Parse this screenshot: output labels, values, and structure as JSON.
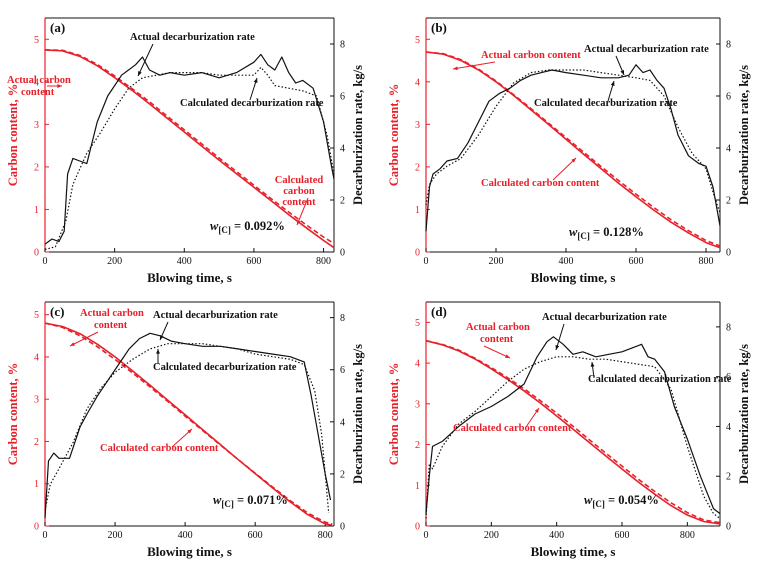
{
  "colors": {
    "carbon": "#e8202a",
    "rate": "#111111"
  },
  "chart_data": [
    {
      "type": "line",
      "panel": "(a)",
      "xlabel": "Blowing time, s",
      "ylabel_left": "Carbon content, %",
      "ylabel_right": "Decarburization rate, kg/s",
      "xlim": [
        0,
        830
      ],
      "ylim_left": [
        0,
        5.5
      ],
      "ylim_right": [
        0,
        9
      ],
      "xticks": [
        0,
        200,
        400,
        600,
        800
      ],
      "yticks_left": [
        0,
        1,
        2,
        3,
        4,
        5
      ],
      "yticks_right": [
        0,
        2,
        4,
        6,
        8
      ],
      "w_prefix": "w",
      "w_sub": "[C]",
      "w_suffix": " = 0.092%",
      "annotations": {
        "actual_rate": "Actual decarburization rate",
        "calc_rate": "Calculated decarburization rate",
        "actual_c": [
          "Actual carbon",
          "content"
        ],
        "calc_c": [
          "Calculated",
          "carbon",
          "content"
        ]
      },
      "series": [
        {
          "name": "Actual carbon content",
          "axis": "left",
          "style": "solid",
          "x": [
            0,
            50,
            100,
            150,
            200,
            250,
            300,
            350,
            400,
            450,
            500,
            550,
            600,
            650,
            700,
            750,
            800,
            830
          ],
          "y": [
            4.75,
            4.73,
            4.6,
            4.38,
            4.1,
            3.8,
            3.48,
            3.15,
            2.82,
            2.49,
            2.16,
            1.84,
            1.52,
            1.2,
            0.88,
            0.57,
            0.27,
            0.1
          ]
        },
        {
          "name": "Calculated carbon content",
          "axis": "left",
          "style": "dashed",
          "x": [
            0,
            50,
            100,
            150,
            200,
            250,
            300,
            350,
            400,
            450,
            500,
            550,
            600,
            650,
            700,
            750,
            800,
            830
          ],
          "y": [
            4.75,
            4.74,
            4.62,
            4.41,
            4.14,
            3.84,
            3.53,
            3.2,
            2.87,
            2.54,
            2.21,
            1.89,
            1.57,
            1.25,
            0.94,
            0.64,
            0.35,
            0.2
          ]
        },
        {
          "name": "Actual decarburization rate",
          "axis": "right",
          "style": "solid",
          "x": [
            0,
            20,
            40,
            55,
            65,
            80,
            100,
            120,
            150,
            180,
            220,
            260,
            280,
            300,
            330,
            360,
            400,
            450,
            500,
            550,
            600,
            620,
            640,
            660,
            680,
            700,
            720,
            740,
            770,
            800,
            820,
            830
          ],
          "y": [
            0.3,
            0.5,
            0.4,
            0.8,
            3.0,
            3.6,
            3.5,
            3.4,
            5.0,
            6.0,
            6.8,
            7.2,
            7.5,
            7.0,
            6.8,
            6.9,
            6.8,
            6.9,
            6.7,
            6.9,
            7.3,
            7.6,
            7.2,
            7.0,
            7.5,
            6.9,
            6.5,
            6.6,
            6.3,
            5.0,
            3.5,
            2.8
          ]
        },
        {
          "name": "Calculated decarburization rate",
          "axis": "right",
          "style": "dotted",
          "x": [
            0,
            30,
            60,
            80,
            120,
            160,
            200,
            240,
            280,
            320,
            360,
            400,
            450,
            500,
            550,
            600,
            620,
            640,
            660,
            700,
            740,
            780,
            810,
            830
          ],
          "y": [
            0.1,
            0.2,
            1.2,
            2.6,
            3.8,
            4.6,
            5.5,
            6.3,
            6.7,
            6.8,
            6.9,
            6.9,
            6.9,
            6.8,
            6.8,
            6.8,
            7.1,
            6.8,
            6.4,
            6.3,
            6.2,
            6.0,
            4.5,
            3.0
          ]
        }
      ]
    },
    {
      "type": "line",
      "panel": "(b)",
      "xlabel": "Blowing time, s",
      "ylabel_left": "Carbon content, %",
      "ylabel_right": "Decarburization rate, kg/s",
      "xlim": [
        0,
        840
      ],
      "ylim_left": [
        0,
        5.5
      ],
      "ylim_right": [
        0,
        9
      ],
      "xticks": [
        0,
        200,
        400,
        600,
        800
      ],
      "yticks_left": [
        0,
        1,
        2,
        3,
        4,
        5
      ],
      "yticks_right": [
        0,
        2,
        4,
        6,
        8
      ],
      "w_prefix": "w",
      "w_sub": "[C]",
      "w_suffix": " = 0.128%",
      "annotations": {
        "actual_rate": "Actual decarburization rate",
        "calc_rate": "Calculated decarburization rate",
        "actual_c": [
          "Actual carbon content"
        ],
        "calc_c": [
          "Calculated carbon content"
        ]
      },
      "series": [
        {
          "name": "Actual carbon content",
          "axis": "left",
          "style": "solid",
          "x": [
            0,
            50,
            100,
            150,
            200,
            250,
            300,
            350,
            400,
            450,
            500,
            550,
            600,
            650,
            700,
            750,
            800,
            840
          ],
          "y": [
            4.7,
            4.65,
            4.5,
            4.28,
            4.0,
            3.68,
            3.34,
            3.0,
            2.65,
            2.3,
            1.96,
            1.62,
            1.3,
            0.99,
            0.7,
            0.45,
            0.22,
            0.1
          ]
        },
        {
          "name": "Calculated carbon content",
          "axis": "left",
          "style": "dashed",
          "x": [
            0,
            50,
            100,
            150,
            200,
            250,
            300,
            350,
            400,
            450,
            500,
            550,
            600,
            650,
            700,
            750,
            800,
            840
          ],
          "y": [
            4.7,
            4.66,
            4.52,
            4.3,
            4.02,
            3.7,
            3.37,
            3.03,
            2.69,
            2.35,
            2.01,
            1.68,
            1.36,
            1.05,
            0.76,
            0.5,
            0.27,
            0.14
          ]
        },
        {
          "name": "Actual decarburization rate",
          "axis": "right",
          "style": "solid",
          "x": [
            0,
            10,
            20,
            40,
            60,
            90,
            120,
            150,
            180,
            210,
            240,
            270,
            300,
            330,
            360,
            400,
            450,
            500,
            550,
            580,
            600,
            620,
            640,
            660,
            680,
            700,
            720,
            750,
            780,
            800,
            820,
            840
          ],
          "y": [
            0.8,
            2.5,
            3.0,
            3.2,
            3.5,
            3.6,
            4.2,
            5.0,
            5.8,
            6.1,
            6.3,
            6.6,
            6.8,
            6.9,
            7.0,
            6.9,
            6.8,
            6.7,
            6.7,
            6.8,
            7.2,
            6.9,
            7.0,
            6.6,
            6.3,
            5.5,
            4.5,
            3.7,
            3.4,
            3.3,
            2.5,
            1.0
          ]
        },
        {
          "name": "Calculated decarburization rate",
          "axis": "right",
          "style": "dotted",
          "x": [
            0,
            10,
            30,
            60,
            100,
            150,
            200,
            250,
            300,
            350,
            400,
            450,
            500,
            550,
            600,
            640,
            680,
            720,
            760,
            800,
            820,
            840
          ],
          "y": [
            1.8,
            2.6,
            3.0,
            3.3,
            3.6,
            4.5,
            5.6,
            6.5,
            6.9,
            7.0,
            7.0,
            7.0,
            6.9,
            6.8,
            6.7,
            6.6,
            6.0,
            4.8,
            3.8,
            3.2,
            2.3,
            1.5
          ]
        }
      ]
    },
    {
      "type": "line",
      "panel": "(c)",
      "xlabel": "Blowing time, s",
      "ylabel_left": "Carbon content, %",
      "ylabel_right": "Decarburization rate, kg/s",
      "xlim": [
        0,
        825
      ],
      "ylim_left": [
        0,
        5.3
      ],
      "ylim_right": [
        0,
        8.6
      ],
      "xticks": [
        0,
        200,
        400,
        600,
        800
      ],
      "yticks_left": [
        0,
        1,
        2,
        3,
        4,
        5
      ],
      "yticks_right": [
        0,
        2,
        4,
        6,
        8
      ],
      "w_prefix": "w",
      "w_sub": "[C]",
      "w_suffix": " = 0.071%",
      "annotations": {
        "actual_rate": "Actual decarburization rate",
        "calc_rate": "Calculated decarburization rate",
        "actual_c": [
          "Actual carbon",
          "content"
        ],
        "calc_c": [
          "Calculated carbon content"
        ]
      },
      "series": [
        {
          "name": "Actual carbon content",
          "axis": "left",
          "style": "solid",
          "x": [
            0,
            50,
            100,
            150,
            200,
            250,
            300,
            350,
            400,
            450,
            500,
            550,
            600,
            650,
            700,
            750,
            800,
            820
          ],
          "y": [
            4.8,
            4.72,
            4.55,
            4.3,
            4.0,
            3.67,
            3.33,
            2.98,
            2.63,
            2.28,
            1.93,
            1.58,
            1.24,
            0.9,
            0.57,
            0.27,
            0.05,
            0.02
          ]
        },
        {
          "name": "Calculated carbon content",
          "axis": "left",
          "style": "dashed",
          "x": [
            0,
            50,
            100,
            150,
            200,
            250,
            300,
            350,
            400,
            450,
            500,
            550,
            600,
            650,
            700,
            750,
            800,
            820
          ],
          "y": [
            4.8,
            4.7,
            4.5,
            4.24,
            3.94,
            3.62,
            3.29,
            2.95,
            2.6,
            2.26,
            1.92,
            1.58,
            1.25,
            0.92,
            0.6,
            0.31,
            0.09,
            0.05
          ]
        },
        {
          "name": "Actual decarburization rate",
          "axis": "right",
          "style": "solid",
          "x": [
            0,
            10,
            25,
            40,
            70,
            100,
            120,
            150,
            180,
            210,
            240,
            270,
            300,
            330,
            360,
            400,
            450,
            500,
            550,
            600,
            650,
            700,
            740,
            760,
            780,
            800,
            815
          ],
          "y": [
            0.3,
            2.5,
            2.8,
            2.6,
            2.6,
            3.8,
            4.3,
            5.0,
            5.6,
            6.2,
            6.8,
            7.2,
            7.4,
            7.3,
            7.1,
            7.0,
            6.9,
            6.9,
            6.8,
            6.7,
            6.6,
            6.5,
            6.3,
            5.0,
            3.5,
            2.0,
            1.0
          ]
        },
        {
          "name": "Calculated decarburization rate",
          "axis": "right",
          "style": "dotted",
          "x": [
            0,
            15,
            40,
            80,
            120,
            160,
            200,
            250,
            300,
            350,
            400,
            450,
            500,
            550,
            600,
            650,
            700,
            740,
            770,
            790,
            800,
            810
          ],
          "y": [
            0.6,
            1.6,
            2.2,
            3.2,
            4.5,
            5.3,
            5.9,
            6.4,
            6.8,
            7.0,
            7.0,
            7.0,
            6.9,
            6.8,
            6.6,
            6.5,
            6.4,
            6.2,
            5.2,
            3.5,
            2.0,
            0.5
          ]
        }
      ]
    },
    {
      "type": "line",
      "panel": "(d)",
      "xlabel": "Blowing time, s",
      "ylabel_left": "Carbon content, %",
      "ylabel_right": "Decarburization rate, kg/s",
      "xlim": [
        0,
        900
      ],
      "ylim_left": [
        0,
        5.5
      ],
      "ylim_right": [
        0,
        9
      ],
      "xticks": [
        0,
        200,
        400,
        600,
        800
      ],
      "yticks_left": [
        0,
        1,
        2,
        3,
        4,
        5
      ],
      "yticks_right": [
        0,
        2,
        4,
        6,
        8
      ],
      "w_prefix": "w",
      "w_sub": "[C]",
      "w_suffix": " = 0.054%",
      "annotations": {
        "actual_rate": "Actual decarburization rate",
        "calc_rate": "Calculated decarburization rate",
        "actual_c": [
          "Actual carbon",
          "content"
        ],
        "calc_c": [
          "Calculated carbon content"
        ]
      },
      "series": [
        {
          "name": "Actual carbon content",
          "axis": "left",
          "style": "solid",
          "x": [
            0,
            50,
            100,
            150,
            200,
            250,
            300,
            350,
            400,
            450,
            500,
            550,
            600,
            650,
            700,
            750,
            800,
            850,
            900
          ],
          "y": [
            4.55,
            4.45,
            4.3,
            4.1,
            3.86,
            3.6,
            3.32,
            3.02,
            2.7,
            2.38,
            2.05,
            1.72,
            1.4,
            1.08,
            0.78,
            0.5,
            0.27,
            0.11,
            0.05
          ]
        },
        {
          "name": "Calculated carbon content",
          "axis": "left",
          "style": "dashed",
          "x": [
            0,
            50,
            100,
            150,
            200,
            250,
            300,
            350,
            400,
            450,
            500,
            550,
            600,
            650,
            700,
            750,
            800,
            850,
            900
          ],
          "y": [
            4.55,
            4.46,
            4.32,
            4.12,
            3.89,
            3.64,
            3.37,
            3.08,
            2.77,
            2.45,
            2.12,
            1.79,
            1.47,
            1.15,
            0.85,
            0.57,
            0.33,
            0.15,
            0.08
          ]
        },
        {
          "name": "Actual decarburization rate",
          "axis": "right",
          "style": "solid",
          "x": [
            0,
            10,
            20,
            50,
            100,
            150,
            200,
            250,
            300,
            340,
            370,
            390,
            420,
            450,
            480,
            520,
            560,
            600,
            640,
            660,
            680,
            700,
            730,
            760,
            800,
            840,
            880,
            900
          ],
          "y": [
            0.5,
            2.0,
            3.2,
            3.4,
            4.0,
            4.5,
            4.8,
            5.2,
            5.7,
            6.8,
            7.4,
            7.6,
            7.3,
            6.9,
            7.0,
            6.8,
            6.9,
            7.0,
            7.2,
            7.3,
            6.8,
            6.7,
            6.2,
            4.8,
            3.5,
            2.0,
            0.7,
            0.5
          ]
        },
        {
          "name": "Calculated decarburization rate",
          "axis": "right",
          "style": "dotted",
          "x": [
            0,
            10,
            20,
            50,
            100,
            150,
            200,
            250,
            300,
            350,
            400,
            450,
            500,
            550,
            600,
            650,
            700,
            750,
            800,
            850,
            880,
            900
          ],
          "y": [
            0.3,
            2.5,
            2.3,
            3.2,
            4.1,
            4.6,
            5.2,
            5.8,
            6.3,
            6.6,
            6.8,
            6.8,
            6.7,
            6.7,
            6.6,
            6.5,
            6.4,
            5.5,
            3.2,
            1.2,
            0.5,
            0.3
          ]
        }
      ]
    }
  ]
}
